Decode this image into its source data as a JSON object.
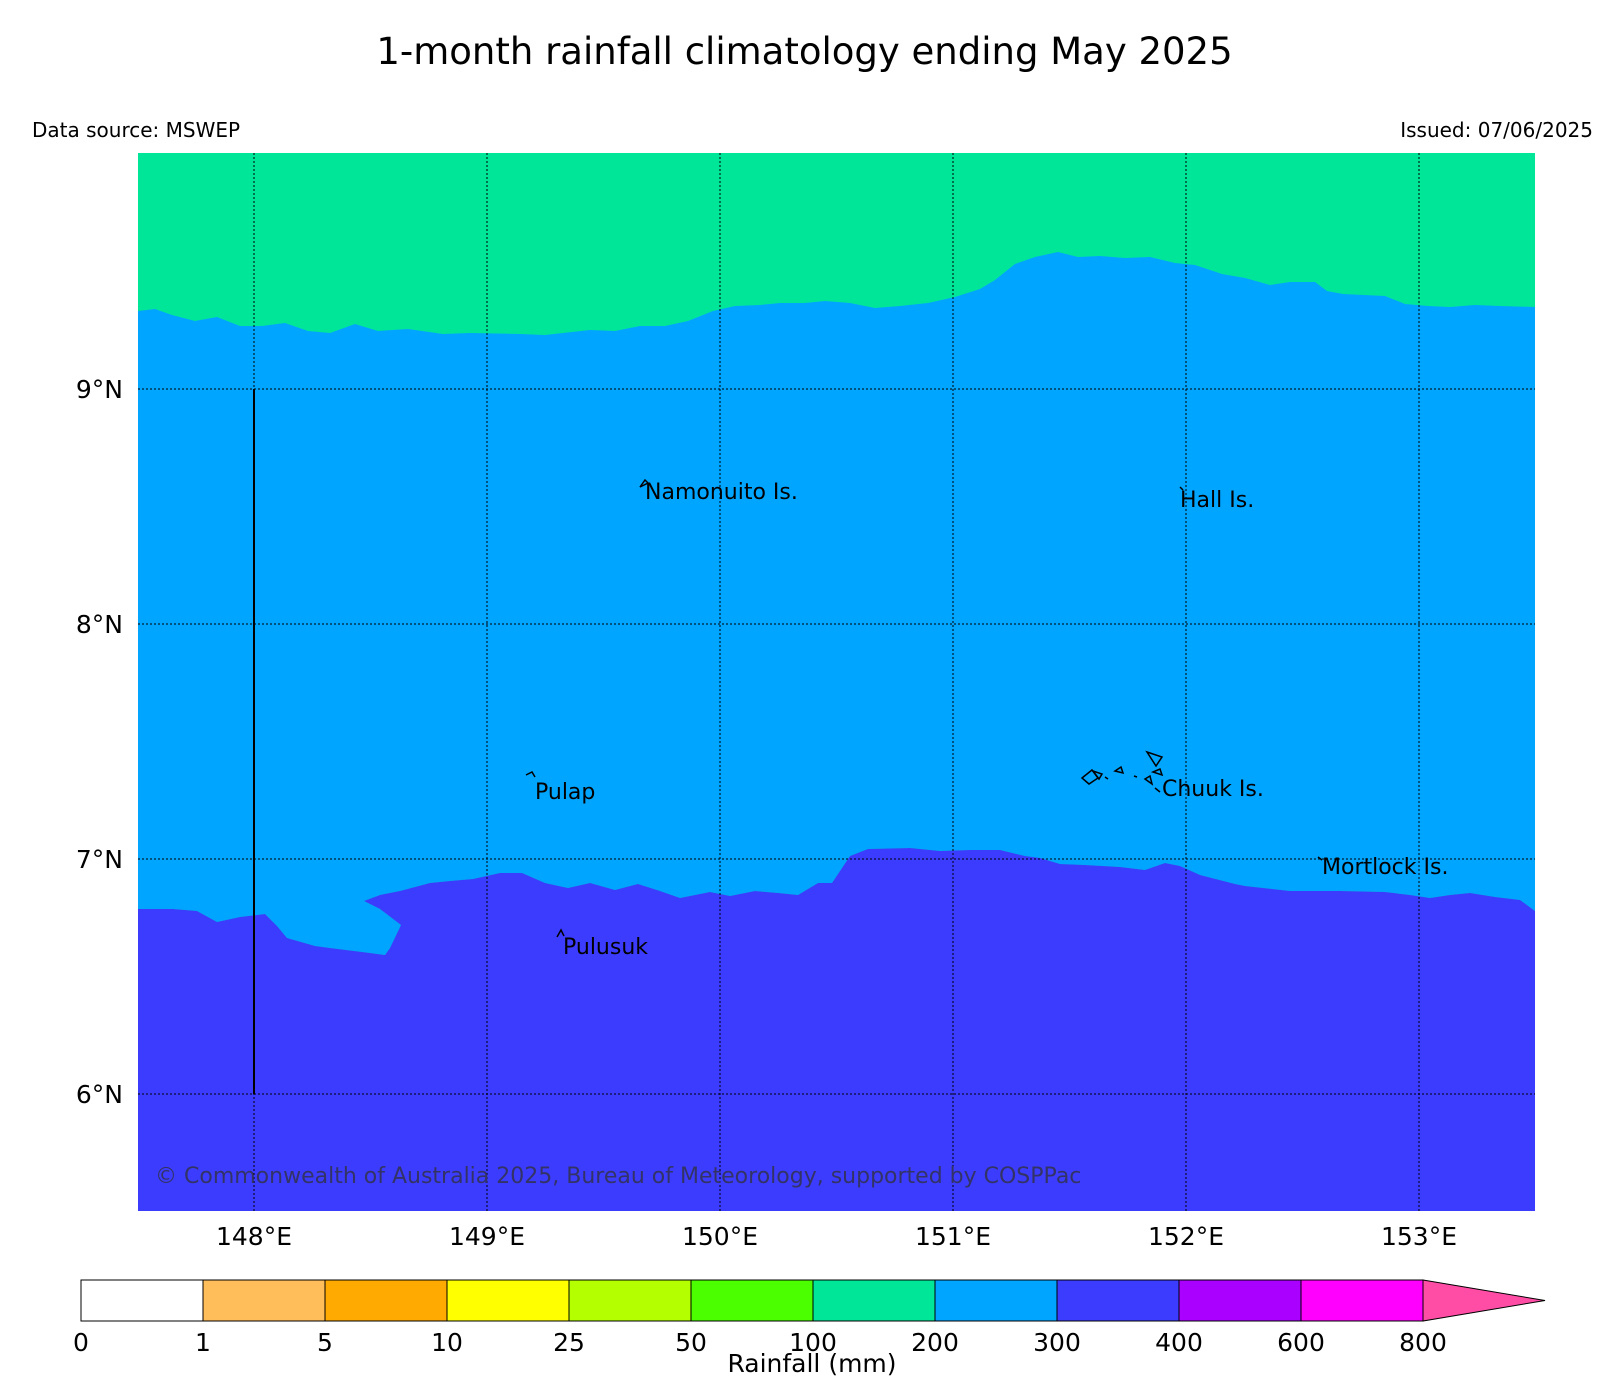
{
  "header": {
    "title": "1-month rainfall climatology ending May 2025",
    "data_source": "Data source: MSWEP",
    "issued": "Issued: 07/06/2025"
  },
  "map": {
    "lon_range": [
      147.5,
      153.5
    ],
    "lat_range": [
      5.5,
      10.0
    ],
    "lon_ticks": [
      {
        "value": 148,
        "label": "148°E"
      },
      {
        "value": 149,
        "label": "149°E"
      },
      {
        "value": 150,
        "label": "150°E"
      },
      {
        "value": 151,
        "label": "151°E"
      },
      {
        "value": 152,
        "label": "152°E"
      },
      {
        "value": 153,
        "label": "153°E"
      }
    ],
    "lat_ticks": [
      {
        "value": 9,
        "label": "9°N"
      },
      {
        "value": 8,
        "label": "8°N"
      },
      {
        "value": 7,
        "label": "7°N"
      },
      {
        "value": 6,
        "label": "6°N"
      }
    ],
    "grid": true,
    "regions": [
      {
        "class": "100-200 mm",
        "color": "#00e699"
      },
      {
        "class": "200-300 mm",
        "color": "#00a5ff"
      },
      {
        "class": "300-400 mm",
        "color": "#3c3cff"
      }
    ],
    "islands": [
      {
        "name": "Namonuito Is.",
        "lon": 149.65,
        "lat": 8.6
      },
      {
        "name": "Hall Is.",
        "lon": 151.98,
        "lat": 8.56
      },
      {
        "name": "Pulap",
        "lon": 149.2,
        "lat": 7.32
      },
      {
        "name": "Chuuk Is.",
        "lon": 151.85,
        "lat": 7.35
      },
      {
        "name": "Mortlock Is.",
        "lon": 152.58,
        "lat": 7.0
      },
      {
        "name": "Pulusuk",
        "lon": 149.32,
        "lat": 6.69
      }
    ],
    "copyright": "© Commonwealth of Australia 2025, Bureau of Meteorology, supported by COSPPac"
  },
  "colorbar": {
    "title": "Rainfall (mm)",
    "boundaries": [
      "0",
      "1",
      "5",
      "10",
      "25",
      "50",
      "100",
      "200",
      "300",
      "400",
      "600",
      "800"
    ],
    "colors": [
      "#ffffff",
      "#ffbe5a",
      "#ffaa00",
      "#ffff00",
      "#b4ff00",
      "#4bff00",
      "#00e699",
      "#00a5ff",
      "#3c3cff",
      "#aa00ff",
      "#ff00ff"
    ],
    "extend_color": "#ff4da6"
  }
}
